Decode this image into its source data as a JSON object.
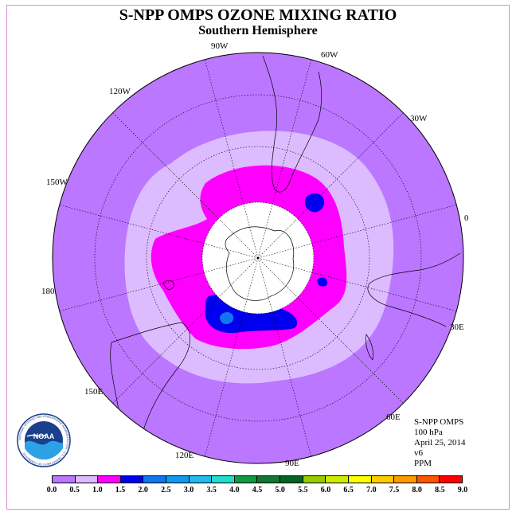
{
  "title": "S-NPP OMPS OZONE MIXING RATIO",
  "subtitle": "Southern Hemisphere",
  "longitude_labels": [
    "90W",
    "60W",
    "30W",
    "0",
    "30E",
    "60E",
    "90E",
    "120E",
    "150E",
    "180",
    "150W",
    "120W"
  ],
  "info": {
    "instrument": "S-NPP OMPS",
    "pressure": "100 hPa",
    "date": "April 25, 2014",
    "version": "v6",
    "units": "PPM"
  },
  "logo": {
    "text": "NOAA",
    "ring_text": "NATIONAL OCEANIC AND ATMOSPHERIC ADMINISTRATION · U.S. DEPARTMENT OF COMMERCE"
  },
  "colorbar": {
    "ticks": [
      "0.0",
      "0.5",
      "1.0",
      "1.5",
      "2.0",
      "2.5",
      "3.0",
      "3.5",
      "4.0",
      "4.5",
      "5.0",
      "5.5",
      "6.0",
      "6.5",
      "7.0",
      "7.5",
      "8.0",
      "8.5",
      "9.0"
    ],
    "colors": [
      "#bb77ff",
      "#ddbbff",
      "#ff00ff",
      "#0000ee",
      "#1177ee",
      "#1199ee",
      "#22bbee",
      "#22ddcc",
      "#119944",
      "#117733",
      "#006622",
      "#99cc00",
      "#ccee00",
      "#ffff00",
      "#ffcc00",
      "#ff9900",
      "#ff5500",
      "#ff0000",
      "#886644"
    ]
  },
  "map_colors": {
    "background_level": "#bb77ff",
    "mid_level": "#ddbbff",
    "high_level": "#ff00ff",
    "max_level": "#0000ee",
    "peak_level": "#1177ee",
    "polar_mask": "#ffffff"
  }
}
